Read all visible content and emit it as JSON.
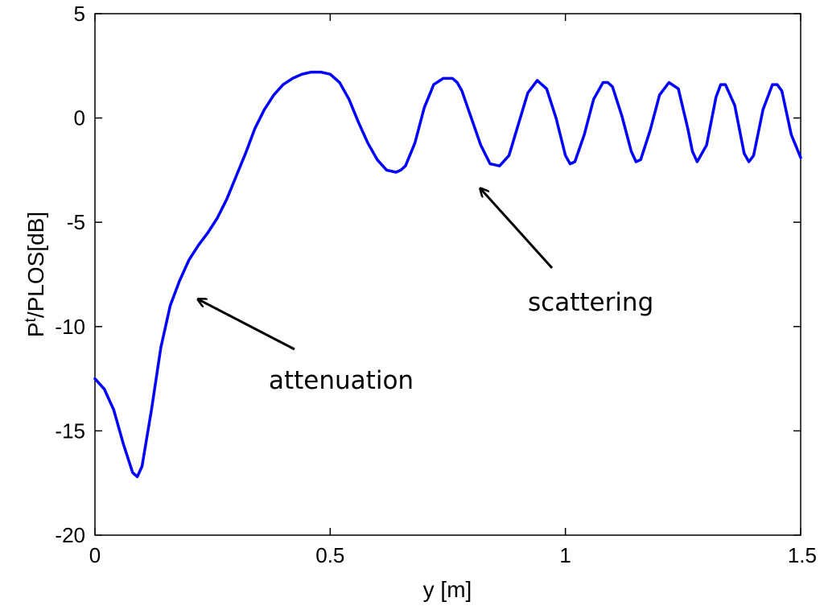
{
  "chart_data": {
    "type": "line",
    "title": "",
    "xlabel": "y [m]",
    "ylabel_main": "P",
    "ylabel_sup": "t",
    "ylabel_rest": "/PLOS[dB]",
    "xlim": [
      0,
      1.5
    ],
    "ylim": [
      -20,
      5
    ],
    "x_ticks": [
      0,
      0.5,
      1,
      1.5
    ],
    "x_tick_labels": [
      "0",
      "0.5",
      "1",
      "1.5"
    ],
    "y_ticks": [
      5,
      0,
      -5,
      -10,
      -15,
      -20
    ],
    "y_tick_labels": [
      "5",
      "0",
      "-5",
      "-10",
      "-15",
      "-20"
    ],
    "grid": false,
    "series": [
      {
        "color": "#0000ff",
        "x": [
          0,
          0.02,
          0.04,
          0.06,
          0.08,
          0.09,
          0.1,
          0.12,
          0.14,
          0.16,
          0.18,
          0.2,
          0.22,
          0.24,
          0.26,
          0.28,
          0.3,
          0.32,
          0.34,
          0.36,
          0.38,
          0.4,
          0.42,
          0.44,
          0.46,
          0.48,
          0.5,
          0.52,
          0.54,
          0.56,
          0.58,
          0.6,
          0.62,
          0.64,
          0.65,
          0.66,
          0.68,
          0.7,
          0.72,
          0.74,
          0.76,
          0.77,
          0.78,
          0.8,
          0.82,
          0.84,
          0.86,
          0.88,
          0.9,
          0.92,
          0.94,
          0.96,
          0.98,
          1.0,
          1.01,
          1.02,
          1.04,
          1.06,
          1.08,
          1.09,
          1.1,
          1.12,
          1.14,
          1.15,
          1.16,
          1.18,
          1.2,
          1.22,
          1.24,
          1.26,
          1.27,
          1.28,
          1.3,
          1.32,
          1.33,
          1.34,
          1.36,
          1.38,
          1.39,
          1.4,
          1.42,
          1.44,
          1.45,
          1.46,
          1.48,
          1.5
        ],
        "y": [
          -12.5,
          -13.0,
          -14.0,
          -15.6,
          -17.0,
          -17.2,
          -16.7,
          -14.0,
          -11.0,
          -9.0,
          -7.8,
          -6.8,
          -6.1,
          -5.5,
          -4.8,
          -3.9,
          -2.8,
          -1.7,
          -0.5,
          0.4,
          1.1,
          1.6,
          1.9,
          2.1,
          2.2,
          2.2,
          2.1,
          1.7,
          0.9,
          -0.2,
          -1.2,
          -2.0,
          -2.5,
          -2.6,
          -2.5,
          -2.3,
          -1.2,
          0.5,
          1.6,
          1.9,
          1.9,
          1.7,
          1.3,
          0.0,
          -1.3,
          -2.2,
          -2.3,
          -1.8,
          -0.3,
          1.2,
          1.8,
          1.4,
          0.0,
          -1.8,
          -2.2,
          -2.1,
          -0.8,
          0.9,
          1.7,
          1.7,
          1.5,
          0.1,
          -1.6,
          -2.1,
          -2.0,
          -0.6,
          1.1,
          1.7,
          1.4,
          -0.5,
          -1.6,
          -2.1,
          -1.3,
          1.0,
          1.6,
          1.6,
          0.6,
          -1.7,
          -2.1,
          -1.8,
          0.4,
          1.6,
          1.6,
          1.3,
          -0.8,
          -1.9
        ]
      }
    ],
    "annotations": [
      {
        "text": "attenuation",
        "arrow_to": [
          0.22,
          -8.7
        ]
      },
      {
        "text": "scattering",
        "arrow_to": [
          0.82,
          -3.4
        ]
      }
    ]
  }
}
